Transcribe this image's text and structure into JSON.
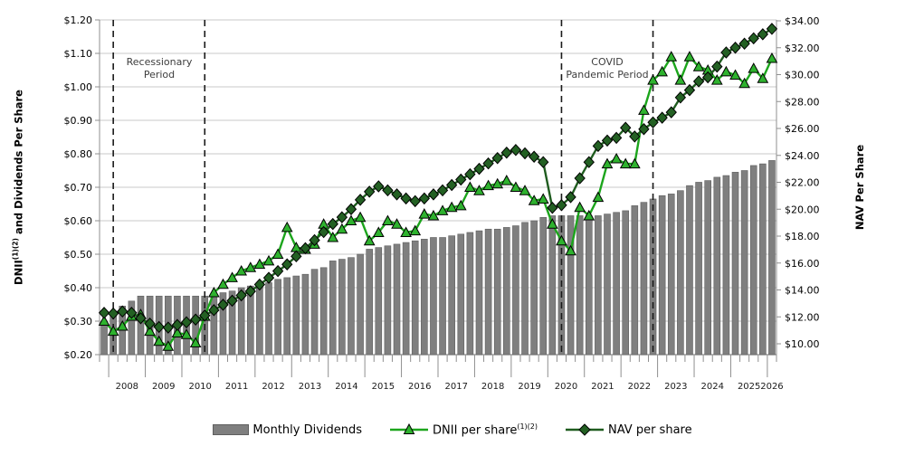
{
  "chart_data": {
    "type": "bar-line-combo",
    "title": "",
    "x_quarters": [
      "2007 Q4",
      "2008 Q1",
      "2008 Q2",
      "2008 Q3",
      "2008 Q4",
      "2009 Q1",
      "2009 Q2",
      "2009 Q3",
      "2009 Q4",
      "2010 Q1",
      "2010 Q2",
      "2010 Q3",
      "2010 Q4",
      "2011 Q1",
      "2011 Q2",
      "2011 Q3",
      "2011 Q4",
      "2012 Q1",
      "2012 Q2",
      "2012 Q3",
      "2012 Q4",
      "2013 Q1",
      "2013 Q2",
      "2013 Q3",
      "2013 Q4",
      "2014 Q1",
      "2014 Q2",
      "2014 Q3",
      "2014 Q4",
      "2015 Q1",
      "2015 Q2",
      "2015 Q3",
      "2015 Q4",
      "2016 Q1",
      "2016 Q2",
      "2016 Q3",
      "2016 Q4",
      "2017 Q1",
      "2017 Q2",
      "2017 Q3",
      "2017 Q4",
      "2018 Q1",
      "2018 Q2",
      "2018 Q3",
      "2018 Q4",
      "2019 Q1",
      "2019 Q2",
      "2019 Q3",
      "2019 Q4",
      "2020 Q1",
      "2020 Q2",
      "2020 Q3",
      "2020 Q4",
      "2021 Q1",
      "2021 Q2",
      "2021 Q3",
      "2021 Q4",
      "2022 Q1",
      "2022 Q2",
      "2022 Q3",
      "2022 Q4",
      "2023 Q1",
      "2023 Q2",
      "2023 Q3",
      "2023 Q4",
      "2024 Q1",
      "2024 Q2",
      "2024 Q3",
      "2024 Q4",
      "2025 Q1",
      "2025 Q2",
      "2025 Q3",
      "2025 Q4",
      "2026 Q1"
    ],
    "x_year_labels": [
      "2008",
      "2009",
      "2010",
      "2011",
      "2012",
      "2013",
      "2014",
      "2015",
      "2016",
      "2017",
      "2018",
      "2019",
      "2020",
      "2021",
      "2022",
      "2023",
      "2024",
      "2025",
      "2026"
    ],
    "series": [
      {
        "name": "Monthly Dividends",
        "type": "bar",
        "axis": "left",
        "color": "#7f7f7f",
        "border_color": "#5f5f5f",
        "values": [
          0.3,
          0.33,
          0.345,
          0.36,
          0.375,
          0.375,
          0.375,
          0.375,
          0.375,
          0.375,
          0.375,
          0.375,
          0.375,
          0.385,
          0.39,
          0.4,
          0.405,
          0.41,
          0.415,
          0.425,
          0.43,
          0.435,
          0.44,
          0.455,
          0.46,
          0.48,
          0.485,
          0.49,
          0.5,
          0.515,
          0.52,
          0.525,
          0.53,
          0.535,
          0.54,
          0.545,
          0.55,
          0.55,
          0.555,
          0.56,
          0.565,
          0.57,
          0.575,
          0.575,
          0.58,
          0.585,
          0.595,
          0.6,
          0.61,
          0.615,
          0.615,
          0.615,
          0.615,
          0.615,
          0.615,
          0.62,
          0.625,
          0.63,
          0.645,
          0.655,
          0.665,
          0.675,
          0.68,
          0.69,
          0.705,
          0.715,
          0.72,
          0.73,
          0.735,
          0.745,
          0.75,
          0.765,
          0.77,
          0.78
        ]
      },
      {
        "name": "DNII per share",
        "name_superscript": "(1)(2)",
        "type": "line",
        "marker": "triangle",
        "axis": "left",
        "line_color": "#1CA51C",
        "marker_fill": "#2EB22E",
        "marker_stroke": "#000000",
        "values": [
          0.3,
          0.27,
          0.285,
          0.315,
          0.32,
          0.27,
          0.24,
          0.225,
          0.265,
          0.26,
          0.235,
          0.315,
          0.385,
          0.41,
          0.43,
          0.45,
          0.46,
          0.47,
          0.48,
          0.5,
          0.58,
          0.52,
          0.515,
          0.53,
          0.59,
          0.55,
          0.575,
          0.6,
          0.61,
          0.54,
          0.565,
          0.6,
          0.59,
          0.565,
          0.57,
          0.62,
          0.615,
          0.63,
          0.64,
          0.645,
          0.7,
          0.69,
          0.705,
          0.71,
          0.72,
          0.7,
          0.69,
          0.66,
          0.665,
          0.59,
          0.54,
          0.51,
          0.64,
          0.615,
          0.67,
          0.77,
          0.785,
          0.77,
          0.77,
          0.93,
          1.02,
          1.045,
          1.09,
          1.02,
          1.09,
          1.06,
          1.05,
          1.02,
          1.045,
          1.035,
          1.01,
          1.055,
          1.025,
          1.085
        ]
      },
      {
        "name": "NAV per share",
        "type": "line",
        "marker": "diamond",
        "axis": "right",
        "line_color": "#1F5C1F",
        "marker_fill": "#236023",
        "marker_stroke": "#000000",
        "values": [
          12.3,
          12.25,
          12.4,
          12.3,
          11.9,
          11.5,
          11.25,
          11.2,
          11.4,
          11.6,
          11.8,
          12.1,
          12.5,
          12.9,
          13.2,
          13.6,
          13.9,
          14.4,
          14.9,
          15.4,
          15.9,
          16.5,
          17.1,
          17.7,
          18.3,
          18.9,
          19.4,
          20.0,
          20.7,
          21.3,
          21.7,
          21.4,
          21.1,
          20.8,
          20.6,
          20.8,
          21.1,
          21.4,
          21.8,
          22.2,
          22.6,
          23.0,
          23.4,
          23.8,
          24.2,
          24.4,
          24.15,
          23.9,
          23.5,
          20.1,
          20.3,
          20.9,
          22.3,
          23.5,
          24.7,
          25.1,
          25.3,
          26.05,
          25.4,
          25.95,
          26.45,
          26.8,
          27.2,
          28.3,
          28.85,
          29.5,
          29.8,
          30.6,
          31.65,
          32.0,
          32.3,
          32.7,
          33.0,
          33.4
        ]
      }
    ],
    "left_axis": {
      "title_text": "DNII",
      "title_superscript": "(1)(2)",
      "title_rest": " and Dividends Per Share",
      "min": 0.2,
      "max": 1.2,
      "step": 0.1,
      "tick_labels": [
        "$0.20",
        "$0.30",
        "$0.40",
        "$0.50",
        "$0.60",
        "$0.70",
        "$0.80",
        "$0.90",
        "$1.00",
        "$1.10",
        "$1.20"
      ]
    },
    "right_axis": {
      "title": "NAV Per Share",
      "min": 10,
      "max": 34,
      "step": 2,
      "tick_labels": [
        "$10.00",
        "$12.00",
        "$14.00",
        "$16.00",
        "$18.00",
        "$20.00",
        "$22.00",
        "$24.00",
        "$26.00",
        "$28.00",
        "$30.00",
        "$32.00",
        "$34.00"
      ]
    },
    "periods": [
      {
        "lines": [
          "Recessionary",
          "Period"
        ],
        "start_quarter_index": 1,
        "end_quarter_index": 11
      },
      {
        "lines": [
          "COVID",
          "Pandemic Period"
        ],
        "start_quarter_index": 50,
        "end_quarter_index": 60
      }
    ],
    "grid": true,
    "legend_position": "bottom"
  },
  "legend": {
    "items": [
      {
        "label": "Monthly Dividends",
        "sup": ""
      },
      {
        "label": "DNII per share",
        "sup": "(1)(2)"
      },
      {
        "label": "NAV per share",
        "sup": ""
      }
    ]
  },
  "colors": {
    "grid": "#c8c8c8",
    "axis": "#8f8f8f",
    "tick": "#8f8f8f",
    "dashed": "#1a1a1a",
    "text": "#000000",
    "year_text": "#1a1a1a",
    "annotation_text": "#3d3d3d"
  }
}
